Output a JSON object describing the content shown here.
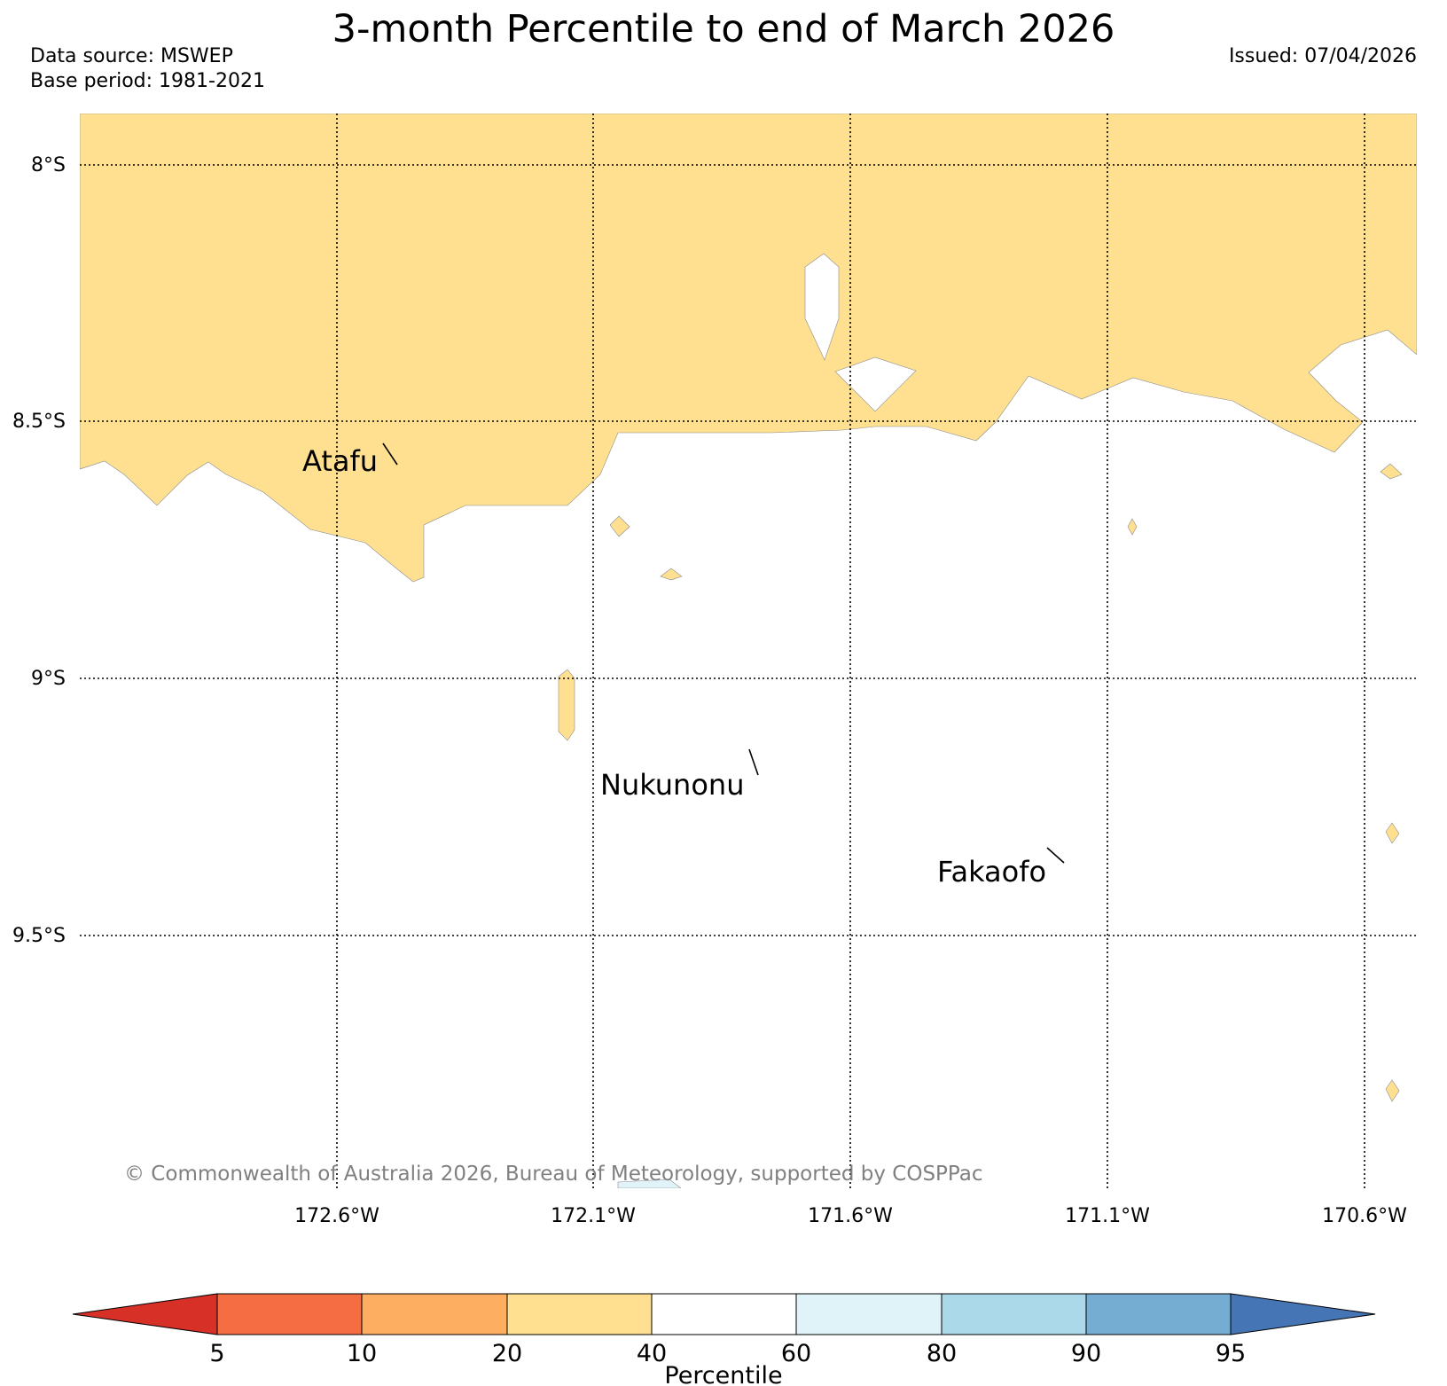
{
  "title": "3-month Percentile to end of March 2026",
  "data_source": "Data source: MSWEP",
  "base_period": "Base period: 1981-2021",
  "issued": "Issued: 07/04/2026",
  "copyright": "© Commonwealth of Australia 2026, Bureau of Meteorology, supported by COSPPac",
  "lat_labels": [
    "8°S",
    "8.5°S",
    "9°S",
    "9.5°S"
  ],
  "lon_labels": [
    "172.6°W",
    "172.1°W",
    "171.6°W",
    "171.1°W",
    "170.6°W"
  ],
  "places": [
    "Atafu",
    "Nukunonu",
    "Fakaofo"
  ],
  "colorbar": {
    "label": "Percentile",
    "ticks": [
      "5",
      "10",
      "20",
      "40",
      "60",
      "80",
      "90",
      "95"
    ],
    "colors": [
      "#d73027",
      "#f46d43",
      "#fdae61",
      "#fee090",
      "#ffffff",
      "#e0f3f8",
      "#abd9e9",
      "#74add1",
      "#4575b4"
    ]
  },
  "legend_colors": {
    "dry_20_40": "#fee090",
    "wet_60_80": "#e0f3f8"
  }
}
